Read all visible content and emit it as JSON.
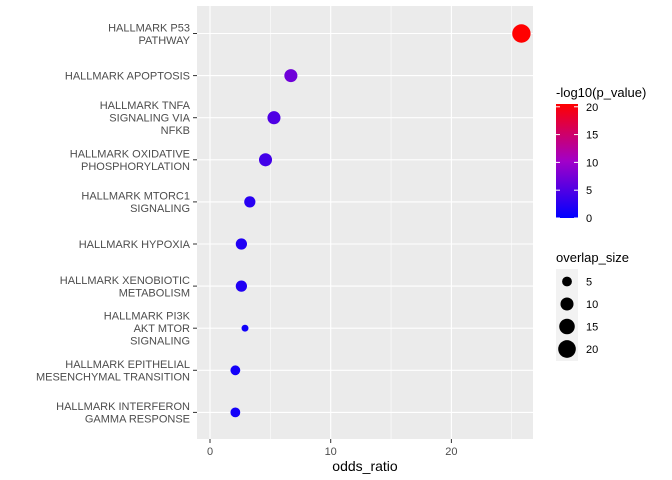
{
  "chart_data": {
    "type": "scatter",
    "xlabel": "odds_ratio",
    "ylabel": "",
    "title": "",
    "xlim": [
      -0.5,
      26.9
    ],
    "xticks": [
      0,
      10,
      20
    ],
    "grid": true,
    "legend_position": "right",
    "categories": [
      "HALLMARK P53\nPATHWAY",
      "HALLMARK APOPTOSIS",
      "HALLMARK TNFA\nSIGNALING VIA\nNFKB",
      "HALLMARK OXIDATIVE\nPHOSPHORYLATION",
      "HALLMARK MTORC1\nSIGNALING",
      "HALLMARK HYPOXIA",
      "HALLMARK XENOBIOTIC\nMETABOLISM",
      "HALLMARK PI3K\nAKT MTOR\nSIGNALING",
      "HALLMARK EPITHELIAL\nMESENCHYMAL TRANSITION",
      "HALLMARK INTERFERON\nGAMMA RESPONSE"
    ],
    "points": [
      {
        "odds_ratio": 25.8,
        "overlap_size": 22,
        "neg_log10_p": 20.5
      },
      {
        "odds_ratio": 6.7,
        "overlap_size": 10,
        "neg_log10_p": 7.0
      },
      {
        "odds_ratio": 5.3,
        "overlap_size": 10,
        "neg_log10_p": 5.0
      },
      {
        "odds_ratio": 4.6,
        "overlap_size": 10,
        "neg_log10_p": 4.2
      },
      {
        "odds_ratio": 3.3,
        "overlap_size": 7,
        "neg_log10_p": 2.5
      },
      {
        "odds_ratio": 2.6,
        "overlap_size": 7,
        "neg_log10_p": 2.0
      },
      {
        "odds_ratio": 2.6,
        "overlap_size": 7,
        "neg_log10_p": 2.0
      },
      {
        "odds_ratio": 2.9,
        "overlap_size": 2,
        "neg_log10_p": 1.0
      },
      {
        "odds_ratio": 2.1,
        "overlap_size": 5,
        "neg_log10_p": 1.2
      },
      {
        "odds_ratio": 2.1,
        "overlap_size": 5,
        "neg_log10_p": 1.2
      }
    ],
    "color_legend": {
      "title": "-log10(p_value)",
      "range": [
        0,
        20.5
      ],
      "ticks": [
        0,
        5,
        10,
        15,
        20
      ],
      "low_color": "#0000ff",
      "high_color": "#ff0000"
    },
    "size_legend": {
      "title": "overlap_size",
      "values": [
        5,
        10,
        15,
        20
      ]
    },
    "panel_background": "#ebebeb",
    "grid_color": "#ffffff"
  }
}
